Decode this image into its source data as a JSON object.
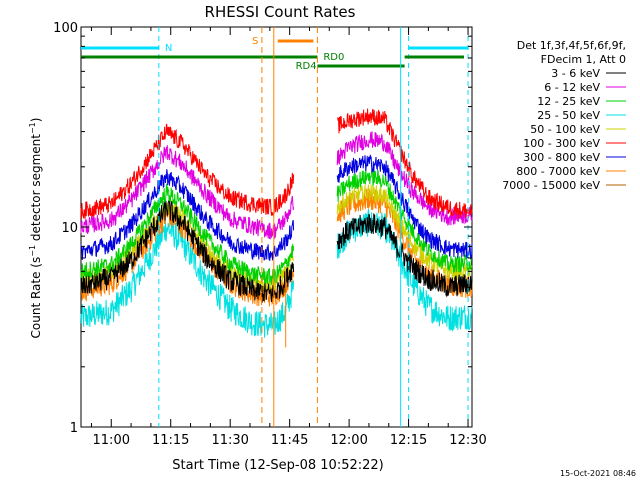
{
  "chart_data": {
    "type": "line",
    "title": "RHESSI Count Rates",
    "xlabel": "Start Time (12-Sep-08 10:52:22)",
    "ylabel": "Count Rate (s⁻¹ detector segment⁻¹)",
    "ylabel_parts": {
      "a": "Count Rate (s",
      "sup1": "−1",
      "b": " detector segment",
      "sup2": "−1",
      "c": ")"
    },
    "yscale": "log",
    "x_unit": "minutes",
    "xlim": [
      "10:52:22",
      "12:31:00"
    ],
    "ylim": [
      1,
      100
    ],
    "x_ticks": [
      "11:00",
      "11:15",
      "11:30",
      "11:45",
      "12:00",
      "12:15",
      "12:30"
    ],
    "y_ticks": [
      {
        "value": 1,
        "label": "1"
      },
      {
        "value": 10,
        "label": "10"
      },
      {
        "value": 100,
        "label": "100"
      }
    ],
    "grid": false,
    "legend_position": "right",
    "legend_header": [
      "Det 1f,3f,4f,5f,6f,9f,",
      "FDecim 1, Att 0"
    ],
    "gap": [
      "11:46",
      "11:57"
    ],
    "series": [
      {
        "name": "3 - 6 keV",
        "color": "#000000",
        "points": [
          [
            "10:52:22",
            5.0
          ],
          [
            "11:00",
            5.6
          ],
          [
            "11:05",
            6.8
          ],
          [
            "11:10",
            9.5
          ],
          [
            "11:14",
            12.5
          ],
          [
            "11:18",
            10.5
          ],
          [
            "11:24",
            7.0
          ],
          [
            "11:30",
            5.4
          ],
          [
            "11:36",
            4.8
          ],
          [
            "11:41",
            4.6
          ],
          [
            "11:44",
            5.4
          ],
          [
            "11:46",
            6.5
          ],
          [
            "11:57",
            8.5
          ],
          [
            "12:00",
            9.6
          ],
          [
            "12:05",
            10.5
          ],
          [
            "12:09",
            10.0
          ],
          [
            "12:12",
            8.0
          ],
          [
            "12:16",
            6.3
          ],
          [
            "12:20",
            5.5
          ],
          [
            "12:25",
            5.0
          ],
          [
            "12:30",
            5.2
          ]
        ]
      },
      {
        "name": "6 - 12 keV",
        "color": "#e000e0",
        "points": [
          [
            "10:52:22",
            10.0
          ],
          [
            "11:00",
            10.8
          ],
          [
            "11:05",
            13.5
          ],
          [
            "11:10",
            18.5
          ],
          [
            "11:14",
            24.0
          ],
          [
            "11:18",
            20.5
          ],
          [
            "11:24",
            14.5
          ],
          [
            "11:30",
            11.0
          ],
          [
            "11:36",
            10.0
          ],
          [
            "11:41",
            9.5
          ],
          [
            "11:44",
            11.0
          ],
          [
            "11:46",
            13.5
          ],
          [
            "11:57",
            22.0
          ],
          [
            "12:00",
            25.0
          ],
          [
            "12:05",
            27.5
          ],
          [
            "12:09",
            26.5
          ],
          [
            "12:12",
            20.0
          ],
          [
            "12:16",
            15.0
          ],
          [
            "12:20",
            12.5
          ],
          [
            "12:25",
            11.2
          ],
          [
            "12:30",
            11.5
          ]
        ]
      },
      {
        "name": "12 - 25 keV",
        "color": "#00d000",
        "points": [
          [
            "10:52:22",
            6.0
          ],
          [
            "11:00",
            6.5
          ],
          [
            "11:05",
            8.2
          ],
          [
            "11:10",
            11.5
          ],
          [
            "11:14",
            15.0
          ],
          [
            "11:18",
            12.8
          ],
          [
            "11:24",
            8.8
          ],
          [
            "11:30",
            6.6
          ],
          [
            "11:36",
            5.8
          ],
          [
            "11:41",
            5.6
          ],
          [
            "11:44",
            6.5
          ],
          [
            "11:46",
            7.8
          ],
          [
            "11:57",
            14.5
          ],
          [
            "12:00",
            16.5
          ],
          [
            "12:05",
            18.0
          ],
          [
            "12:09",
            17.0
          ],
          [
            "12:12",
            13.0
          ],
          [
            "12:16",
            9.5
          ],
          [
            "12:20",
            7.6
          ],
          [
            "12:25",
            6.5
          ],
          [
            "12:30",
            6.6
          ]
        ]
      },
      {
        "name": "25 - 50 keV",
        "color": "#00e0e0",
        "points": [
          [
            "10:52:22",
            3.5
          ],
          [
            "11:00",
            3.8
          ],
          [
            "11:05",
            4.9
          ],
          [
            "11:10",
            7.2
          ],
          [
            "11:14",
            10.0
          ],
          [
            "11:18",
            8.3
          ],
          [
            "11:24",
            5.4
          ],
          [
            "11:30",
            3.9
          ],
          [
            "11:36",
            3.3
          ],
          [
            "11:41",
            3.2
          ],
          [
            "11:44",
            3.8
          ],
          [
            "11:46",
            5.0
          ],
          [
            "11:57",
            8.0
          ],
          [
            "12:00",
            9.5
          ],
          [
            "12:05",
            10.5
          ],
          [
            "12:09",
            10.0
          ],
          [
            "12:12",
            7.5
          ],
          [
            "12:16",
            5.2
          ],
          [
            "12:20",
            4.0
          ],
          [
            "12:25",
            3.5
          ],
          [
            "12:30",
            3.6
          ]
        ]
      },
      {
        "name": "50 - 100 keV",
        "color": "#d0d000",
        "points": [
          [
            "10:52:22",
            5.5
          ],
          [
            "11:00",
            6.0
          ],
          [
            "11:05",
            7.5
          ],
          [
            "11:10",
            10.0
          ],
          [
            "11:14",
            13.0
          ],
          [
            "11:18",
            11.2
          ],
          [
            "11:24",
            7.8
          ],
          [
            "11:30",
            6.0
          ],
          [
            "11:36",
            5.3
          ],
          [
            "11:41",
            5.2
          ],
          [
            "11:44",
            5.9
          ],
          [
            "11:46",
            7.2
          ],
          [
            "11:57",
            12.5
          ],
          [
            "12:00",
            14.0
          ],
          [
            "12:05",
            15.0
          ],
          [
            "12:09",
            14.3
          ],
          [
            "12:12",
            11.2
          ],
          [
            "12:16",
            8.2
          ],
          [
            "12:20",
            6.8
          ],
          [
            "12:25",
            6.0
          ],
          [
            "12:30",
            6.0
          ]
        ]
      },
      {
        "name": "100 - 300 keV",
        "color": "#ff0000",
        "points": [
          [
            "10:52:22",
            12.0
          ],
          [
            "11:00",
            13.0
          ],
          [
            "11:05",
            16.5
          ],
          [
            "11:10",
            23.0
          ],
          [
            "11:14",
            30.0
          ],
          [
            "11:18",
            26.0
          ],
          [
            "11:24",
            18.0
          ],
          [
            "11:30",
            14.0
          ],
          [
            "11:36",
            13.0
          ],
          [
            "11:41",
            12.5
          ],
          [
            "11:44",
            14.5
          ],
          [
            "11:46",
            17.5
          ],
          [
            "11:57",
            32.0
          ],
          [
            "12:00",
            34.0
          ],
          [
            "12:05",
            36.0
          ],
          [
            "12:09",
            34.5
          ],
          [
            "12:12",
            26.0
          ],
          [
            "12:16",
            18.0
          ],
          [
            "12:20",
            14.0
          ],
          [
            "12:25",
            12.5
          ],
          [
            "12:30",
            12.0
          ]
        ]
      },
      {
        "name": "300 - 800 keV",
        "color": "#0000e0",
        "points": [
          [
            "10:52:22",
            7.5
          ],
          [
            "11:00",
            8.2
          ],
          [
            "11:05",
            10.2
          ],
          [
            "11:10",
            14.0
          ],
          [
            "11:14",
            18.0
          ],
          [
            "11:18",
            15.5
          ],
          [
            "11:24",
            10.8
          ],
          [
            "11:30",
            8.4
          ],
          [
            "11:36",
            7.6
          ],
          [
            "11:41",
            7.4
          ],
          [
            "11:44",
            8.5
          ],
          [
            "11:46",
            10.0
          ],
          [
            "11:57",
            18.0
          ],
          [
            "12:00",
            20.0
          ],
          [
            "12:05",
            21.0
          ],
          [
            "12:09",
            20.0
          ],
          [
            "12:12",
            15.5
          ],
          [
            "12:16",
            11.0
          ],
          [
            "12:20",
            8.8
          ],
          [
            "12:25",
            7.8
          ],
          [
            "12:30",
            7.6
          ]
        ]
      },
      {
        "name": "800 - 7000 keV",
        "color": "#ff8000",
        "points": [
          [
            "10:52:22",
            4.8
          ],
          [
            "11:00",
            5.2
          ],
          [
            "11:05",
            6.5
          ],
          [
            "11:10",
            8.8
          ],
          [
            "11:14",
            11.5
          ],
          [
            "11:18",
            10.0
          ],
          [
            "11:24",
            7.0
          ],
          [
            "11:30",
            5.2
          ],
          [
            "11:36",
            4.6
          ],
          [
            "11:41",
            4.5
          ],
          [
            "11:44",
            5.2
          ],
          [
            "11:46",
            6.2
          ],
          [
            "11:57",
            11.5
          ],
          [
            "12:00",
            12.8
          ],
          [
            "12:05",
            13.8
          ],
          [
            "12:09",
            13.0
          ],
          [
            "12:12",
            10.2
          ],
          [
            "12:16",
            7.2
          ],
          [
            "12:20",
            5.8
          ],
          [
            "12:25",
            5.1
          ],
          [
            "12:30",
            5.0
          ]
        ]
      },
      {
        "name": "7000 - 15000 keV",
        "color": "#b06000",
        "points": []
      }
    ],
    "annotations": {
      "night": {
        "label": "N",
        "color": "#00e0ff",
        "segments": [
          [
            "10:52:22",
            "11:12"
          ],
          [
            "12:15",
            "12:30"
          ]
        ],
        "lines": [
          "11:12",
          "12:15",
          "12:30"
        ]
      },
      "saa": {
        "label": "S",
        "color": "#ff8000",
        "segments": [
          [
            "11:39",
            "11:52"
          ]
        ],
        "lines": [
          "11:39",
          "11:41"
        ]
      },
      "flags": {
        "color": "#008000",
        "segments": [
          [
            "10:52:22",
            "11:52"
          ],
          [
            "11:52",
            "12:14"
          ],
          [
            "12:14",
            "12:30"
          ]
        ],
        "labels": [
          {
            "text": "RD0"
          },
          {
            "text": "RD4"
          }
        ]
      },
      "vertical_lines": [
        {
          "t": "11:38",
          "color": "#ff8000",
          "style": "dashed"
        },
        {
          "t": "11:41",
          "color": "#ff8000",
          "style": "solid"
        },
        {
          "t": "11:52",
          "color": "#ff8000",
          "style": "dashed"
        },
        {
          "t": "12:13",
          "color": "#00e0ff",
          "style": "solid"
        }
      ]
    }
  },
  "footer": {
    "timestamp": "15-Oct-2021 08:46"
  }
}
